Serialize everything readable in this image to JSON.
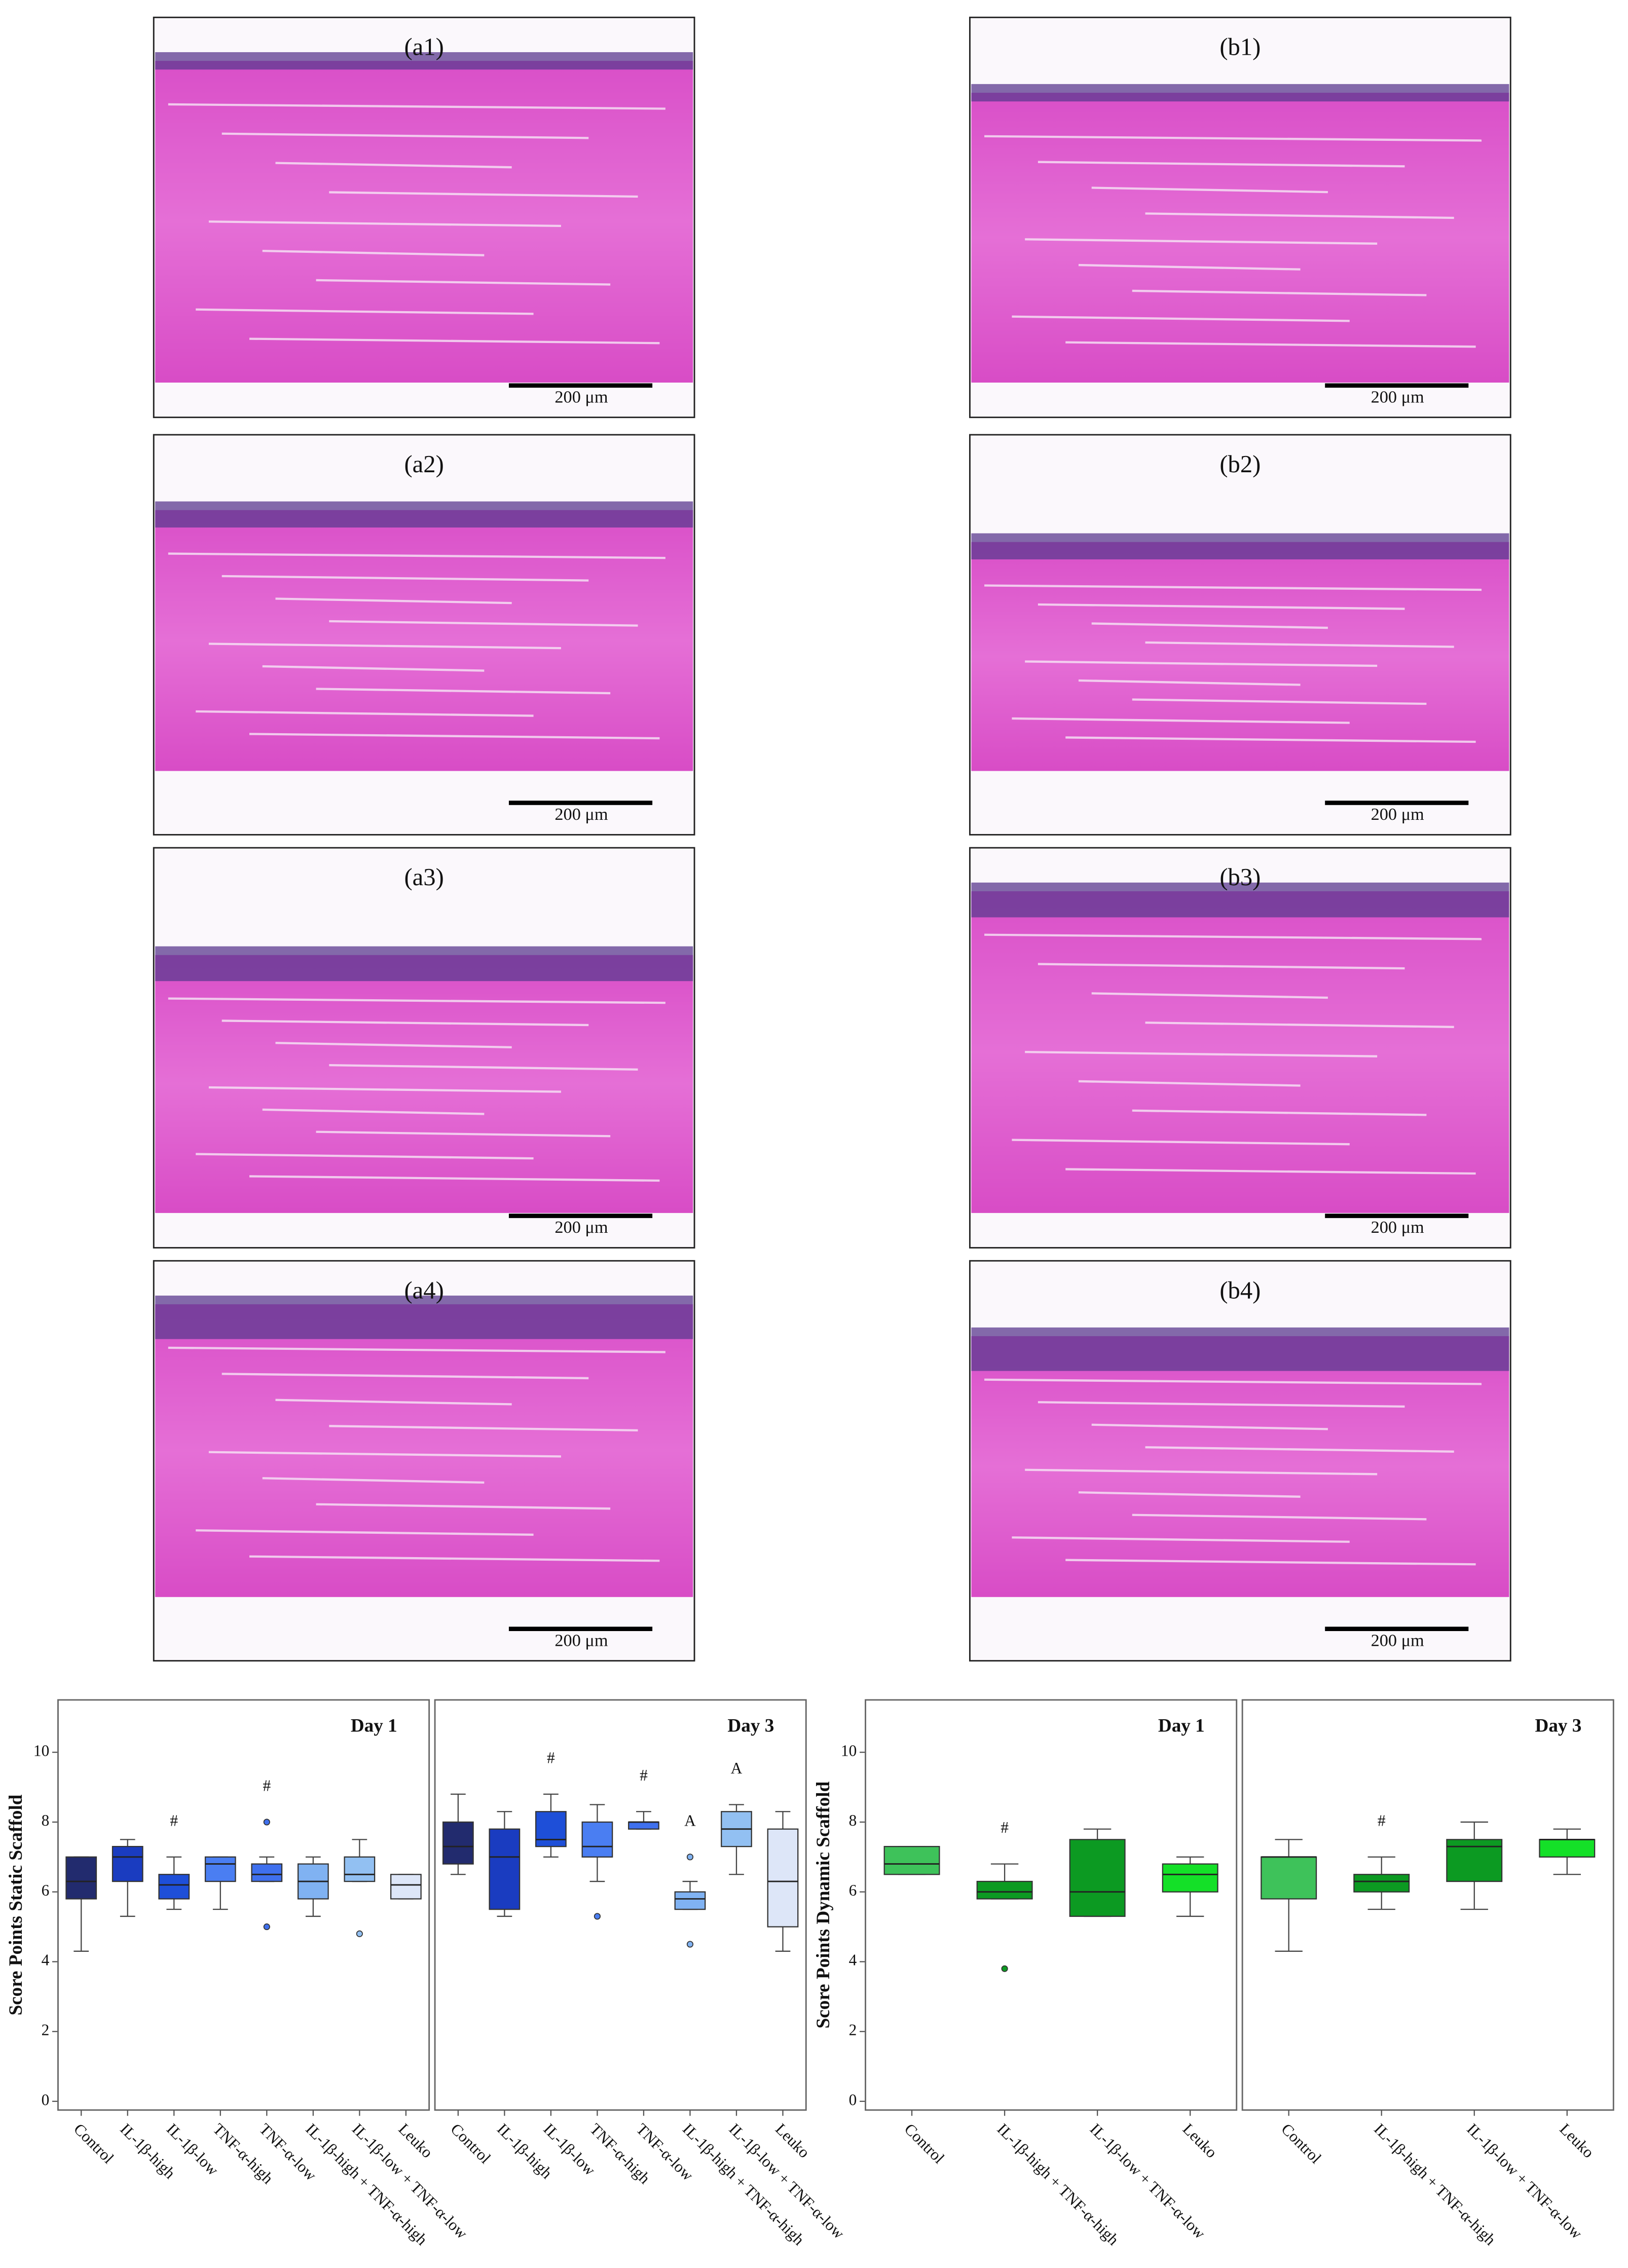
{
  "micrographs": [
    {
      "label": "(a1)",
      "scale_bar": "200 μm"
    },
    {
      "label": "(a2)",
      "scale_bar": "200 μm"
    },
    {
      "label": "(a3)",
      "scale_bar": "200 μm"
    },
    {
      "label": "(a4)",
      "scale_bar": "200 μm"
    },
    {
      "label": "(b1)",
      "scale_bar": "200 μm"
    },
    {
      "label": "(b2)",
      "scale_bar": "200 μm"
    },
    {
      "label": "(b3)",
      "scale_bar": "200 μm"
    },
    {
      "label": "(b4)",
      "scale_bar": "200 μm"
    }
  ],
  "chart_data": [
    {
      "type": "box",
      "y_label": "Score Points Static Scaffold",
      "ylim": [
        -0.25,
        11.5
      ],
      "yticks": [
        0,
        2,
        4,
        6,
        8,
        10
      ],
      "panels": [
        {
          "title": "Day 1",
          "categories": [
            "Control",
            "IL-1β-high",
            "IL-1β-low",
            "TNF-α-high",
            "TNF-α-low",
            "IL-1β-high + TNF-α-high",
            "IL-1β-low + TNF-α-low",
            "Leuko"
          ],
          "boxes": [
            {
              "color": "#222b6e",
              "min": 4.3,
              "q1": 5.8,
              "median": 6.3,
              "q3": 7.0,
              "max": 7.0
            },
            {
              "color": "#1a3cc0",
              "min": 5.3,
              "q1": 6.3,
              "median": 7.0,
              "q3": 7.3,
              "max": 7.5
            },
            {
              "color": "#1e4fd8",
              "min": 5.5,
              "q1": 5.8,
              "median": 6.2,
              "q3": 6.5,
              "max": 7.0,
              "annotation": "#"
            },
            {
              "color": "#4a7ef2",
              "min": 5.5,
              "q1": 6.3,
              "median": 6.8,
              "q3": 7.0,
              "max": 7.0
            },
            {
              "color": "#3f70ee",
              "min": 6.3,
              "q1": 6.3,
              "median": 6.5,
              "q3": 6.8,
              "max": 7.0,
              "outliers": [
                8.0,
                5.0
              ],
              "annotation": "#"
            },
            {
              "color": "#80b2f2",
              "min": 5.3,
              "q1": 5.8,
              "median": 6.3,
              "q3": 6.8,
              "max": 7.0
            },
            {
              "color": "#92c0f2",
              "min": 6.3,
              "q1": 6.3,
              "median": 6.5,
              "q3": 7.0,
              "max": 7.5,
              "outliers": [
                4.8
              ]
            },
            {
              "color": "#dde6f8",
              "min": 5.8,
              "q1": 5.8,
              "median": 6.2,
              "q3": 6.5,
              "max": 6.5
            }
          ]
        },
        {
          "title": "Day 3",
          "categories": [
            "Control",
            "IL-1β-high",
            "IL-1β-low",
            "TNF-α-high",
            "TNF-α-low",
            "IL-1β-high + TNF-α-high",
            "IL-1β-low + TNF-α-low",
            "Leuko"
          ],
          "boxes": [
            {
              "color": "#222b6e",
              "min": 6.5,
              "q1": 6.8,
              "median": 7.3,
              "q3": 8.0,
              "max": 8.8
            },
            {
              "color": "#1a3cc0",
              "min": 5.3,
              "q1": 5.5,
              "median": 7.0,
              "q3": 7.8,
              "max": 8.3
            },
            {
              "color": "#1e4fd8",
              "min": 7.0,
              "q1": 7.3,
              "median": 7.5,
              "q3": 8.3,
              "max": 8.8,
              "annotation": "#"
            },
            {
              "color": "#4a7ef2",
              "min": 6.3,
              "q1": 7.0,
              "median": 7.3,
              "q3": 8.0,
              "max": 8.5,
              "outliers": [
                5.3
              ]
            },
            {
              "color": "#3f70ee",
              "min": 7.8,
              "q1": 7.8,
              "median": 8.0,
              "q3": 8.0,
              "max": 8.3,
              "annotation": "#"
            },
            {
              "color": "#80b2f2",
              "min": 5.5,
              "q1": 5.5,
              "median": 5.8,
              "q3": 6.0,
              "max": 6.3,
              "outliers": [
                7.0,
                4.5
              ],
              "annotation": "A"
            },
            {
              "color": "#92c0f2",
              "min": 6.5,
              "q1": 7.3,
              "median": 7.8,
              "q3": 8.3,
              "max": 8.5,
              "annotation": "A"
            },
            {
              "color": "#dde6f8",
              "min": 4.3,
              "q1": 5.0,
              "median": 6.3,
              "q3": 7.8,
              "max": 8.3
            }
          ]
        }
      ]
    },
    {
      "type": "box",
      "y_label": "Score Points Dynamic Scaffold",
      "ylim": [
        -0.25,
        11.5
      ],
      "yticks": [
        0,
        2,
        4,
        6,
        8,
        10
      ],
      "panels": [
        {
          "title": "Day 1",
          "categories": [
            "Control",
            "IL-1β-high + TNF-α-high",
            "IL-1β-low + TNF-α-low",
            "Leuko"
          ],
          "boxes": [
            {
              "color": "#3ec25a",
              "min": 6.5,
              "q1": 6.5,
              "median": 6.8,
              "q3": 7.3,
              "max": 7.3
            },
            {
              "color": "#0c9a22",
              "min": 5.8,
              "q1": 5.8,
              "median": 6.0,
              "q3": 6.3,
              "max": 6.8,
              "outliers": [
                3.8
              ],
              "annotation": "#"
            },
            {
              "color": "#0c9a22",
              "min": 5.3,
              "q1": 5.3,
              "median": 6.0,
              "q3": 7.5,
              "max": 7.8
            },
            {
              "color": "#14e028",
              "min": 5.3,
              "q1": 6.0,
              "median": 6.5,
              "q3": 6.8,
              "max": 7.0
            }
          ]
        },
        {
          "title": "Day 3",
          "categories": [
            "Control",
            "IL-1β-high + TNF-α-high",
            "IL-1β-low + TNF-α-low",
            "Leuko"
          ],
          "boxes": [
            {
              "color": "#3ec25a",
              "min": 4.3,
              "q1": 5.8,
              "median": 7.0,
              "q3": 7.0,
              "max": 7.5
            },
            {
              "color": "#0c9a22",
              "min": 5.5,
              "q1": 6.0,
              "median": 6.3,
              "q3": 6.5,
              "max": 7.0,
              "annotation": "#"
            },
            {
              "color": "#0c9a22",
              "min": 5.5,
              "q1": 6.3,
              "median": 7.3,
              "q3": 7.5,
              "max": 8.0
            },
            {
              "color": "#14e028",
              "min": 6.5,
              "q1": 7.0,
              "median": 7.5,
              "q3": 7.5,
              "max": 7.8
            }
          ]
        }
      ]
    }
  ]
}
